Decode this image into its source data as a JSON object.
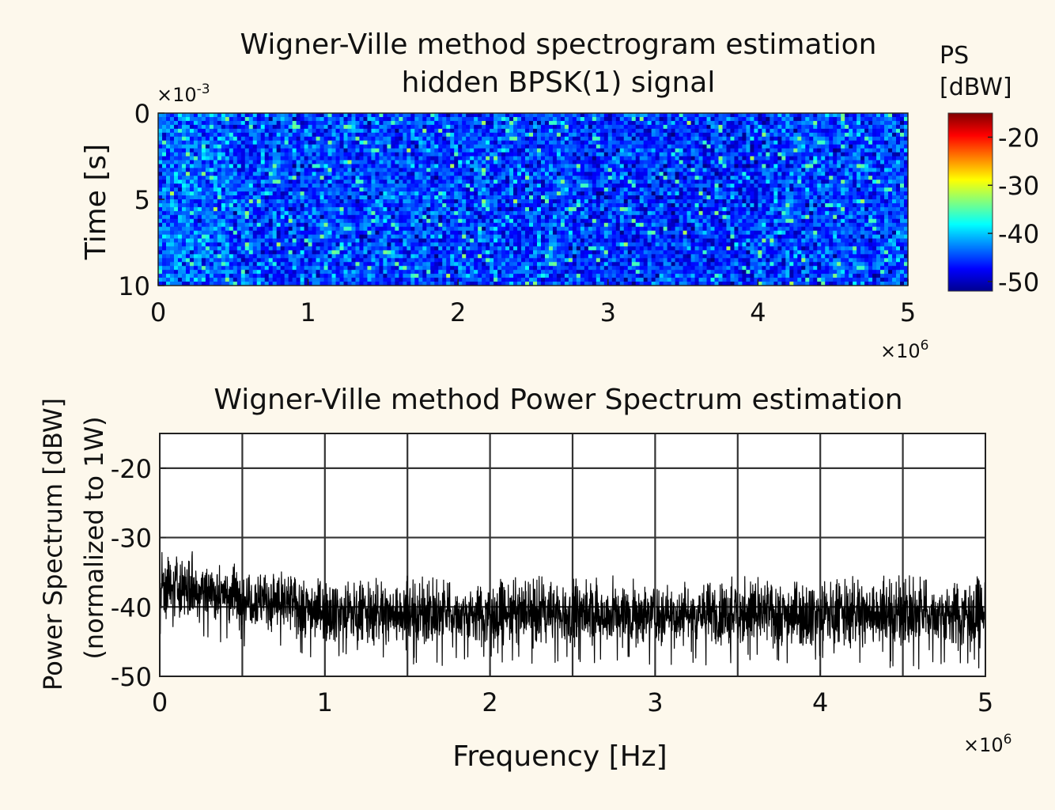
{
  "chart_data": [
    {
      "type": "heatmap",
      "title": "Wigner-Ville method spectrogram estimation",
      "subtitle": "hidden BPSK(1) signal",
      "ylabel": "Time [s]",
      "y_multiplier": "×10",
      "y_multiplier_exp": "-3",
      "x_multiplier": "×10",
      "x_multiplier_exp": "6",
      "xlim": [
        0,
        5
      ],
      "ylim": [
        0,
        10
      ],
      "y_reversed": true,
      "x_ticks": [
        "0",
        "1",
        "2",
        "3",
        "4",
        "5"
      ],
      "y_ticks": [
        "0",
        "5",
        "10"
      ],
      "colorbar": {
        "label_line1": "PS",
        "label_line2": "[dBW]",
        "range": [
          -52,
          -15
        ],
        "ticks": [
          "-20",
          "-30",
          "-40",
          "-50"
        ],
        "tick_values": [
          -20,
          -30,
          -40,
          -50
        ],
        "colormap": "jet"
      },
      "z_summary": {
        "typical_dBW": -45,
        "peak_dBW": -35
      }
    },
    {
      "type": "line",
      "title": "Wigner-Ville method Power Spectrum estimation",
      "xlabel": "Frequency [Hz]",
      "ylabel_line1": "Power Spectrum [dBW]",
      "ylabel_line2": "(normalized to 1W)",
      "x_multiplier": "×10",
      "x_multiplier_exp": "6",
      "xlim": [
        0,
        5
      ],
      "ylim": [
        -50,
        -15
      ],
      "x_ticks": [
        "0",
        "1",
        "2",
        "3",
        "4",
        "5"
      ],
      "y_ticks": [
        "-20",
        "-30",
        "-40",
        "-50"
      ],
      "y_tick_values": [
        -20,
        -30,
        -40,
        -50
      ],
      "grid": true,
      "series": [
        {
          "color": "#000000",
          "x": [
            0,
            0.25,
            0.5,
            0.75,
            1.0,
            1.25,
            1.5,
            1.75,
            2.0,
            2.25,
            2.5,
            2.75,
            3.0,
            3.25,
            3.5,
            3.75,
            4.0,
            4.25,
            4.5,
            4.75,
            5.0
          ],
          "mean": [
            -37,
            -37.5,
            -38.5,
            -39.5,
            -40.5,
            -41,
            -41,
            -41,
            -41,
            -41,
            -41,
            -41,
            -41,
            -41,
            -41,
            -41,
            -41,
            -41,
            -41,
            -41,
            -41
          ],
          "max": [
            -31,
            -31.5,
            -34,
            -35,
            -36,
            -36,
            -35.5,
            -36,
            -36,
            -35.5,
            -36,
            -35.5,
            -36,
            -36,
            -35.5,
            -36,
            -36,
            -35.5,
            -35.5,
            -35.5,
            -35.5
          ],
          "min": [
            -45,
            -44.5,
            -46,
            -47,
            -48,
            -48,
            -48.5,
            -48.5,
            -48,
            -48.5,
            -48.5,
            -48,
            -48.5,
            -48.5,
            -48,
            -48.5,
            -48.5,
            -49,
            -49,
            -49,
            -49
          ]
        }
      ]
    }
  ]
}
